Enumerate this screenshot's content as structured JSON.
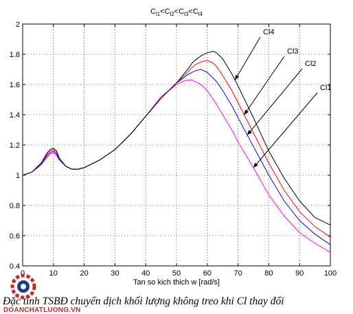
{
  "chart_data": {
    "type": "line",
    "title_parts": [
      "C",
      "l1",
      "<C",
      "l2",
      "<C",
      "l3",
      "<C",
      "l4"
    ],
    "xlabel": "Tan so kich thich w [rad/s]",
    "ylabel": "",
    "xlim": [
      0,
      100
    ],
    "ylim": [
      0.4,
      2
    ],
    "xticks": [
      0,
      10,
      20,
      30,
      40,
      50,
      60,
      70,
      80,
      90,
      100
    ],
    "yticks": [
      0.4,
      0.6,
      0.8,
      1,
      1.2,
      1.4,
      1.6,
      1.8,
      2
    ],
    "grid": true,
    "x": [
      0,
      3,
      6,
      8,
      9,
      10,
      11,
      12,
      14,
      16,
      18,
      20,
      25,
      30,
      35,
      40,
      45,
      50,
      52,
      54,
      55,
      56,
      58,
      60,
      62,
      63,
      65,
      68,
      70,
      75,
      80,
      85,
      90,
      95,
      100
    ],
    "series": [
      {
        "name": "Cl1",
        "color": "#ff00ff",
        "values": [
          1.0,
          1.02,
          1.07,
          1.12,
          1.14,
          1.15,
          1.13,
          1.1,
          1.06,
          1.04,
          1.04,
          1.05,
          1.1,
          1.17,
          1.27,
          1.39,
          1.52,
          1.6,
          1.62,
          1.63,
          1.63,
          1.62,
          1.6,
          1.56,
          1.5,
          1.47,
          1.4,
          1.3,
          1.22,
          1.05,
          0.87,
          0.73,
          0.62,
          0.55,
          0.49
        ]
      },
      {
        "name": "Cl2",
        "color": "#0000ff",
        "values": [
          1.0,
          1.02,
          1.07,
          1.13,
          1.15,
          1.16,
          1.14,
          1.1,
          1.06,
          1.04,
          1.04,
          1.05,
          1.1,
          1.17,
          1.27,
          1.39,
          1.51,
          1.61,
          1.64,
          1.67,
          1.68,
          1.69,
          1.7,
          1.68,
          1.64,
          1.62,
          1.56,
          1.46,
          1.38,
          1.19,
          1.0,
          0.83,
          0.7,
          0.61,
          0.54
        ]
      },
      {
        "name": "Cl3",
        "color": "#ff0000",
        "values": [
          1.0,
          1.02,
          1.08,
          1.14,
          1.16,
          1.17,
          1.15,
          1.11,
          1.06,
          1.04,
          1.04,
          1.05,
          1.1,
          1.17,
          1.27,
          1.39,
          1.51,
          1.61,
          1.65,
          1.69,
          1.71,
          1.73,
          1.75,
          1.76,
          1.74,
          1.72,
          1.66,
          1.56,
          1.48,
          1.28,
          1.08,
          0.9,
          0.76,
          0.66,
          0.59
        ]
      },
      {
        "name": "Cl4",
        "color": "#000000",
        "values": [
          1.0,
          1.02,
          1.08,
          1.15,
          1.17,
          1.18,
          1.16,
          1.11,
          1.06,
          1.04,
          1.04,
          1.05,
          1.1,
          1.17,
          1.27,
          1.39,
          1.51,
          1.61,
          1.66,
          1.71,
          1.74,
          1.76,
          1.79,
          1.81,
          1.82,
          1.81,
          1.77,
          1.67,
          1.59,
          1.38,
          1.16,
          0.98,
          0.83,
          0.72,
          0.67
        ]
      }
    ],
    "annotations": [
      {
        "text": "Cl4",
        "series": "Cl4",
        "x": 69
      },
      {
        "text": "Cl3",
        "series": "Cl3",
        "x": 72
      },
      {
        "text": "Cl2",
        "series": "Cl2",
        "x": 73
      },
      {
        "text": "Cl1",
        "series": "Cl1",
        "x": 75
      }
    ]
  },
  "caption": "Đặc tính TSBĐ chuyển dịch khối lượng không treo khi Cl thay đổi",
  "logo": {
    "text": "DOANCHATLUONG.VN",
    "icon": "gear-logo-icon",
    "color": "#c62828"
  }
}
